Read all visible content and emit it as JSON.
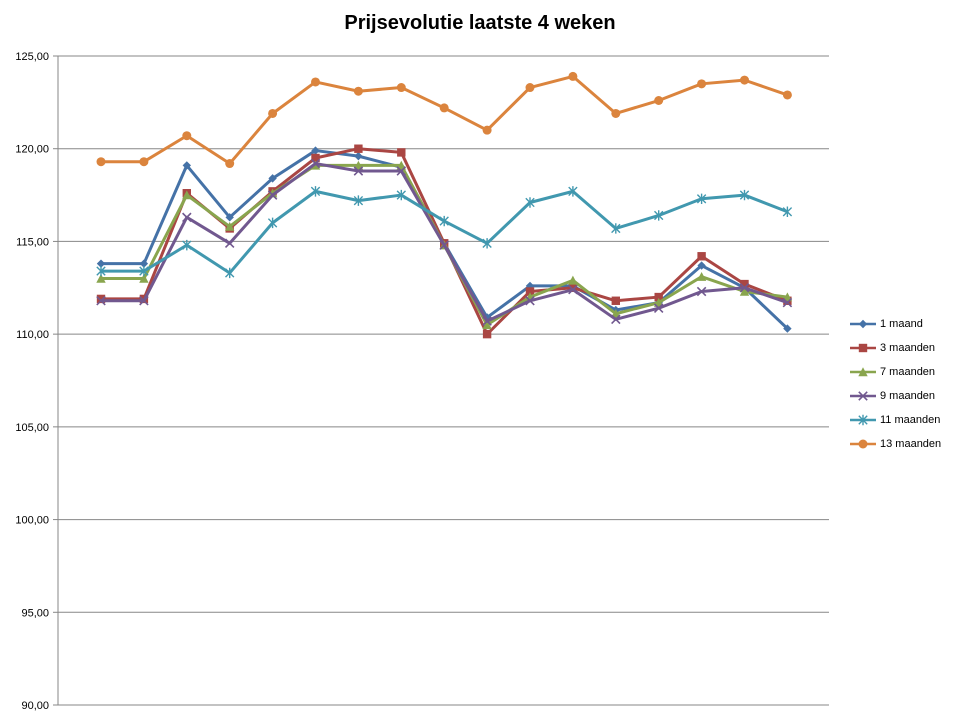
{
  "chart_data": {
    "type": "line",
    "title": "Prijsevolutie laatste 4 weken",
    "xlabel": "",
    "ylabel": "",
    "ylim": [
      90,
      125
    ],
    "yticks": [
      "90,00",
      "95,00",
      "100,00",
      "105,00",
      "110,00",
      "115,00",
      "120,00",
      "125,00"
    ],
    "grid": true,
    "legend_position": "right",
    "x": [
      1,
      2,
      3,
      4,
      5,
      6,
      7,
      8,
      9,
      10,
      11,
      12,
      13,
      14,
      15,
      16,
      17
    ],
    "series": [
      {
        "name": "1 maand",
        "color": "#4572A7",
        "marker": "diamond",
        "values": [
          113.8,
          113.8,
          119.1,
          116.3,
          118.4,
          119.9,
          119.6,
          119.0,
          114.9,
          110.9,
          112.6,
          112.6,
          111.3,
          111.7,
          113.7,
          112.5,
          110.3
        ]
      },
      {
        "name": "3 maanden",
        "color": "#AA4643",
        "marker": "square",
        "values": [
          111.9,
          111.9,
          117.6,
          115.7,
          117.7,
          119.5,
          120.0,
          119.8,
          114.9,
          110.0,
          112.3,
          112.5,
          111.8,
          112.0,
          114.2,
          112.7,
          111.8
        ]
      },
      {
        "name": "7 maanden",
        "color": "#89A54E",
        "marker": "triangle",
        "values": [
          113.0,
          113.0,
          117.5,
          115.8,
          117.6,
          119.1,
          119.1,
          119.1,
          114.8,
          110.5,
          112.0,
          112.9,
          111.1,
          111.7,
          113.1,
          112.3,
          112.0
        ]
      },
      {
        "name": "9 maanden",
        "color": "#71588F",
        "marker": "x",
        "values": [
          111.8,
          111.8,
          116.3,
          114.9,
          117.5,
          119.2,
          118.8,
          118.8,
          114.8,
          110.7,
          111.8,
          112.4,
          110.8,
          111.4,
          112.3,
          112.5,
          111.7
        ]
      },
      {
        "name": "11 maanden",
        "color": "#4198AF",
        "marker": "star",
        "values": [
          113.4,
          113.4,
          114.8,
          113.3,
          116.0,
          117.7,
          117.2,
          117.5,
          116.1,
          114.9,
          117.1,
          117.7,
          115.7,
          116.4,
          117.3,
          117.5,
          116.6
        ]
      },
      {
        "name": "13 maanden",
        "color": "#DB843D",
        "marker": "circle",
        "values": [
          119.3,
          119.3,
          120.7,
          119.2,
          121.9,
          123.6,
          123.1,
          123.3,
          122.2,
          121.0,
          123.3,
          123.9,
          121.9,
          122.6,
          123.5,
          123.7,
          122.9
        ]
      }
    ]
  }
}
